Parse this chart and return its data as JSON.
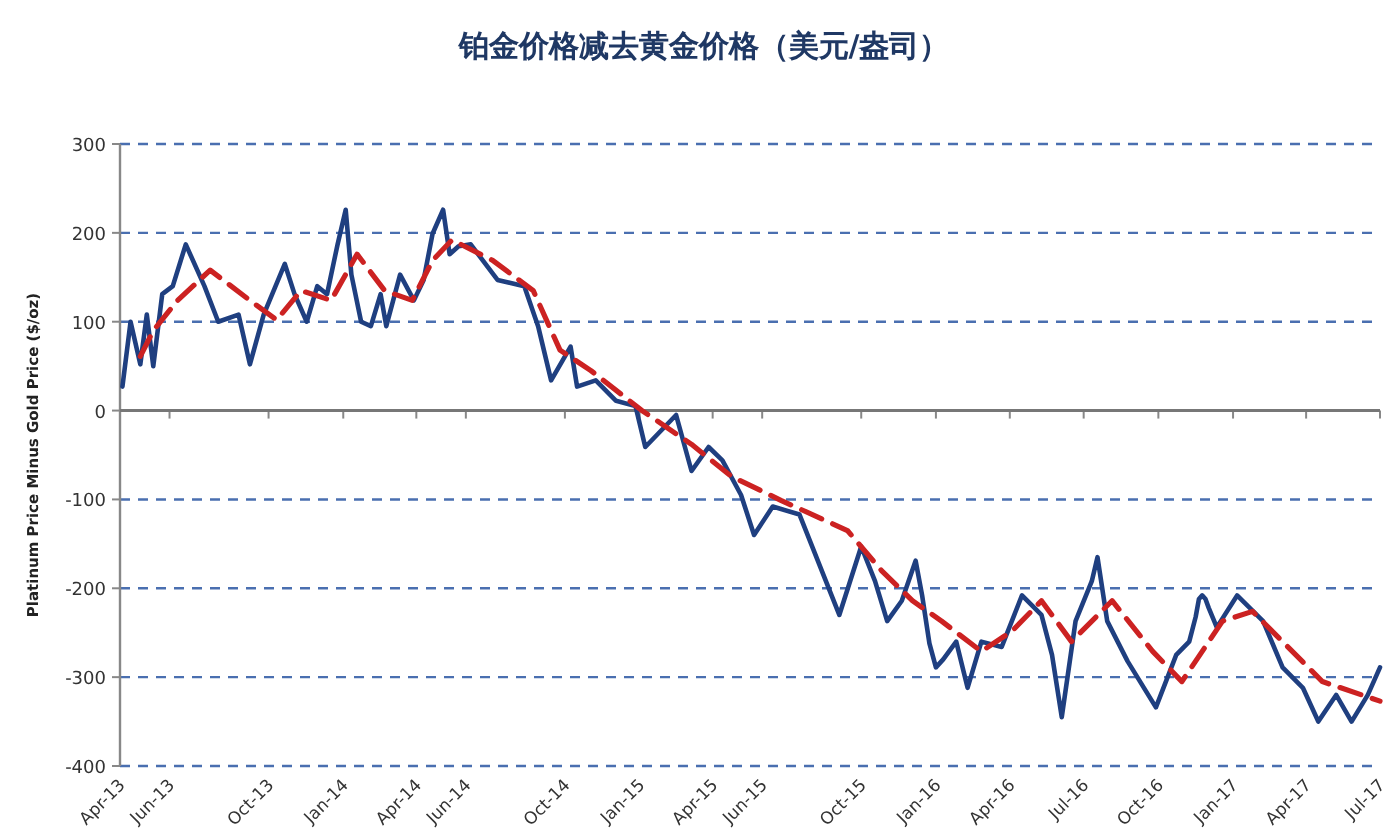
{
  "chart_data": {
    "type": "line",
    "title": "铂金价格减去黄金价格（美元/盎司）",
    "ylabel": "Platinum Price Minus Gold Price ($/oz)",
    "xlim": [
      "2013-04",
      "2017-07"
    ],
    "ylim": [
      -400,
      300
    ],
    "yticks": [
      -400,
      -300,
      -200,
      -100,
      0,
      100,
      200,
      300
    ],
    "xticks": [
      {
        "value": "2013-04",
        "label": "Apr-13"
      },
      {
        "value": "2013-06",
        "label": "Jun-13"
      },
      {
        "value": "2013-10",
        "label": "Oct-13"
      },
      {
        "value": "2014-01",
        "label": "Jan-14"
      },
      {
        "value": "2014-04",
        "label": "Apr-14"
      },
      {
        "value": "2014-06",
        "label": "Jun-14"
      },
      {
        "value": "2014-10",
        "label": "Oct-14"
      },
      {
        "value": "2015-01",
        "label": "Jan-15"
      },
      {
        "value": "2015-04",
        "label": "Apr-15"
      },
      {
        "value": "2015-06",
        "label": "Jun-15"
      },
      {
        "value": "2015-10",
        "label": "Oct-15"
      },
      {
        "value": "2016-01",
        "label": "Jan-16"
      },
      {
        "value": "2016-04",
        "label": "Apr-16"
      },
      {
        "value": "2016-07",
        "label": "Jul-16"
      },
      {
        "value": "2016-10",
        "label": "Oct-16"
      },
      {
        "value": "2017-01",
        "label": "Jan-17"
      },
      {
        "value": "2017-04",
        "label": "Apr-17"
      },
      {
        "value": "2017-07",
        "label": "Jul-17"
      }
    ],
    "grid": "y",
    "marker": "none",
    "series": [
      {
        "color": "#1f3f80",
        "line_style": "solid",
        "x": [
          "2013-04-04",
          "2013-04-14",
          "2013-04-26",
          "2013-05-04",
          "2013-05-12",
          "2013-05-23",
          "2013-06-05",
          "2013-06-21",
          "2013-07-14",
          "2013-07-31",
          "2013-08-25",
          "2013-09-08",
          "2013-09-25",
          "2013-10-21",
          "2013-11-02",
          "2013-11-17",
          "2013-11-30",
          "2013-12-12",
          "2013-12-25",
          "2014-01-04",
          "2014-01-11",
          "2014-01-23",
          "2014-02-04",
          "2014-02-16",
          "2014-02-23",
          "2014-03-12",
          "2014-03-29",
          "2014-04-10",
          "2014-04-21",
          "2014-05-04",
          "2014-05-12",
          "2014-05-23",
          "2014-06-07",
          "2014-07-10",
          "2014-08-12",
          "2014-08-29",
          "2014-09-14",
          "2014-10-08",
          "2014-10-16",
          "2014-11-08",
          "2014-12-03",
          "2014-12-27",
          "2015-01-08",
          "2015-02-15",
          "2015-03-06",
          "2015-03-27",
          "2015-04-13",
          "2015-05-06",
          "2015-05-22",
          "2015-06-14",
          "2015-07-17",
          "2015-09-04",
          "2015-10-01",
          "2015-10-18",
          "2015-11-02",
          "2015-11-20",
          "2015-12-07",
          "2015-12-15",
          "2015-12-24",
          "2016-01-01",
          "2016-01-10",
          "2016-01-26",
          "2016-02-09",
          "2016-02-26",
          "2016-03-22",
          "2016-04-16",
          "2016-05-10",
          "2016-05-23",
          "2016-06-04",
          "2016-06-21",
          "2016-07-11",
          "2016-07-18",
          "2016-07-30",
          "2016-08-24",
          "2016-09-28",
          "2016-10-23",
          "2016-11-08",
          "2016-11-16",
          "2016-11-20",
          "2016-11-24",
          "2016-11-28",
          "2016-12-02",
          "2016-12-12",
          "2017-01-06",
          "2017-02-07",
          "2017-03-03",
          "2017-03-28",
          "2017-04-16",
          "2017-05-08",
          "2017-05-27",
          "2017-06-16",
          "2017-07-01"
        ],
        "values": [
          27,
          100,
          52,
          108,
          50,
          131,
          140,
          187,
          140,
          100,
          108,
          52,
          108,
          165,
          131,
          100,
          140,
          131,
          187,
          226,
          153,
          100,
          95,
          131,
          95,
          153,
          124,
          147,
          199,
          226,
          176,
          185,
          187,
          147,
          140,
          95,
          34,
          72,
          27,
          34,
          11,
          5,
          -41,
          -5,
          -68,
          -41,
          -56,
          -95,
          -140,
          -108,
          -117,
          -230,
          -153,
          -192,
          -237,
          -214,
          -169,
          -208,
          -262,
          -289,
          -280,
          -260,
          -312,
          -260,
          -266,
          -208,
          -230,
          -275,
          -345,
          -237,
          -192,
          -165,
          -237,
          -282,
          -334,
          -275,
          -260,
          -232,
          -212,
          -208,
          -212,
          -222,
          -244,
          -208,
          -237,
          -289,
          -312,
          -350,
          -320,
          -350,
          -320,
          -289
        ]
      },
      {
        "color": "#cc2222",
        "line_style": "dashed",
        "x": [
          "2013-04-26",
          "2013-05-12",
          "2013-06-11",
          "2013-07-21",
          "2013-09-08",
          "2013-10-11",
          "2013-11-10",
          "2013-12-17",
          "2014-01-18",
          "2014-02-21",
          "2014-03-27",
          "2014-04-21",
          "2014-05-15",
          "2014-07-04",
          "2014-08-23",
          "2014-09-25",
          "2014-11-02",
          "2015-01-04",
          "2015-03-06",
          "2015-04-24",
          "2015-06-24",
          "2015-09-14",
          "2015-10-26",
          "2015-12-03",
          "2016-01-08",
          "2016-02-26",
          "2016-04-04",
          "2016-05-10",
          "2016-06-16",
          "2016-08-05",
          "2016-09-24",
          "2016-10-30",
          "2016-12-19",
          "2017-01-25",
          "2017-03-03",
          "2017-04-21",
          "2017-07-01"
        ],
        "values": [
          61,
          90,
          124,
          158,
          124,
          102,
          135,
          124,
          176,
          135,
          124,
          169,
          192,
          169,
          135,
          68,
          45,
          0,
          -38,
          -74,
          -101,
          -135,
          -180,
          -214,
          -237,
          -271,
          -248,
          -214,
          -260,
          -214,
          -271,
          -305,
          -237,
          -226,
          -260,
          -305,
          -327
        ]
      }
    ]
  }
}
